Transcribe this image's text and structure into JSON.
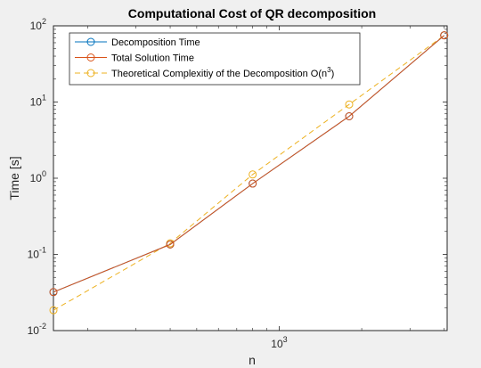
{
  "chart_data": {
    "type": "line",
    "title": "Computational Cost of QR decomposition",
    "xlabel": "n",
    "ylabel": "Time [s]",
    "xscale": "log",
    "yscale": "log",
    "xlim": [
      150,
      4100
    ],
    "ylim": [
      0.01,
      100
    ],
    "grid": false,
    "legend_position": "top-left",
    "x_ticks": [
      {
        "value": 1000,
        "base": "10",
        "exp": "3"
      }
    ],
    "y_ticks": [
      {
        "value": 0.01,
        "base": "10",
        "exp": "-2"
      },
      {
        "value": 0.1,
        "base": "10",
        "exp": "-1"
      },
      {
        "value": 1,
        "base": "10",
        "exp": "0"
      },
      {
        "value": 10,
        "base": "10",
        "exp": "1"
      },
      {
        "value": 100,
        "base": "10",
        "exp": "2"
      }
    ],
    "series": [
      {
        "name": "Decomposition Time",
        "color": "#0072bd",
        "dashed": false,
        "x": [
          150,
          400,
          800,
          1800,
          4000
        ],
        "y": [
          0.032,
          0.135,
          0.85,
          6.5,
          75
        ]
      },
      {
        "name": "Total Solution Time",
        "color": "#d95319",
        "dashed": false,
        "x": [
          150,
          400,
          800,
          1800,
          4000
        ],
        "y": [
          0.032,
          0.135,
          0.85,
          6.5,
          75
        ]
      },
      {
        "name": "Theoretical Complexitiy of the Decomposition O(n",
        "name_sup": "3",
        "name_tail": ")",
        "color": "#edb120",
        "dashed": true,
        "x": [
          150,
          400,
          800,
          1800,
          4000
        ],
        "y": [
          0.0185,
          0.14,
          1.12,
          9.3,
          75
        ]
      }
    ]
  }
}
